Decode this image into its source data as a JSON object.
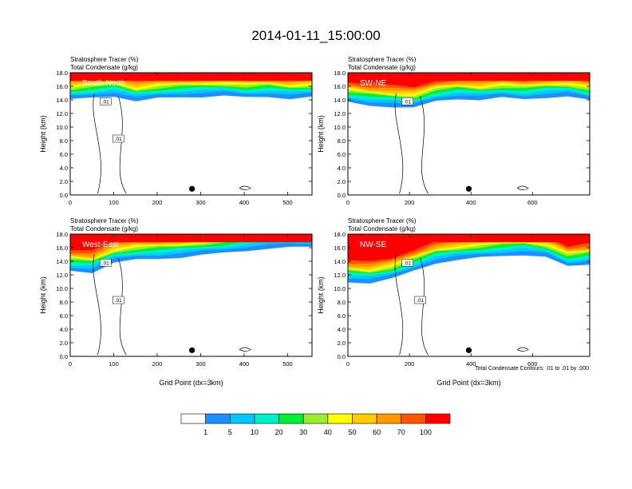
{
  "title": "2014-01-11_15:00:00",
  "colors": {
    "levels": [
      "#ffffff",
      "#1f8fff",
      "#00c8ff",
      "#00eecc",
      "#00ee33",
      "#99ee33",
      "#ffff00",
      "#ffcc00",
      "#ff9900",
      "#ff5500",
      "#ff0000"
    ],
    "contour": "#000000",
    "frame": "#000000"
  },
  "colorbar": {
    "labels": [
      "1",
      "5",
      "10",
      "20",
      "30",
      "40",
      "50",
      "60",
      "70",
      "100"
    ]
  },
  "footnote": "Total Condensate Contours: .01 to .01 by .000",
  "chart_data": [
    {
      "type": "heatmap",
      "name": "South-North",
      "title_line1": "Stratosphere Tracer   (%)",
      "title_line2": "Total Condensate   (g/kg)",
      "panel_label": "South-North",
      "ylabel": "Height (km)",
      "xlabel": "",
      "xlim": [
        0,
        556
      ],
      "ylim": [
        0,
        18
      ],
      "xticks": [
        "0",
        "100",
        "200",
        "300",
        "400",
        "500"
      ],
      "xtick_values": [
        0,
        100,
        200,
        300,
        400,
        500
      ],
      "yticks": [
        "0.0",
        "2.0",
        "4.0",
        "6.0",
        "8.0",
        "10.0",
        "12.0",
        "14.0",
        "16.0",
        "18.0"
      ],
      "contour_labels": [
        ".01",
        ".01"
      ],
      "marker_x": 280,
      "tracer_base_km": [
        14.0,
        14.3,
        14.6,
        13.8,
        14.2,
        14.4,
        14.5,
        14.6,
        14.3,
        14.5,
        14.2,
        14.4
      ]
    },
    {
      "type": "heatmap",
      "name": "SW-NE",
      "title_line1": "Stratosphere Tracer   (%)",
      "title_line2": "Total Condensate   (g/kg)",
      "panel_label": "SW-NE",
      "ylabel": "Height (km)",
      "xlabel": "",
      "xlim": [
        0,
        786
      ],
      "ylim": [
        0,
        18
      ],
      "xticks": [
        "0",
        "200",
        "400",
        "600"
      ],
      "xtick_values": [
        0,
        200,
        400,
        600
      ],
      "yticks": [
        "0.0",
        "2.0",
        "4.0",
        "6.0",
        "8.0",
        "10.0",
        "12.0",
        "14.0",
        "16.0",
        "18.0"
      ],
      "contour_labels": [
        ".01"
      ],
      "marker_x": 393,
      "tracer_base_km": [
        13.6,
        13.2,
        13.0,
        12.8,
        13.8,
        14.2,
        14.0,
        14.3,
        14.1,
        14.4,
        14.5,
        13.9
      ]
    },
    {
      "type": "heatmap",
      "name": "West-East",
      "title_line1": "Stratosphere Tracer   (%)",
      "title_line2": "Total Condensate   (g/kg)",
      "panel_label": "West-East",
      "ylabel": "Height (km)",
      "xlabel": "Grid Point (dx=3km)",
      "xlim": [
        0,
        556
      ],
      "ylim": [
        0,
        18
      ],
      "xticks": [
        "0",
        "100",
        "200",
        "300",
        "400",
        "500"
      ],
      "xtick_values": [
        0,
        100,
        200,
        300,
        400,
        500
      ],
      "yticks": [
        "0.0",
        "2.0",
        "4.0",
        "6.0",
        "8.0",
        "10.0",
        "12.0",
        "14.0",
        "16.0",
        "18.0"
      ],
      "contour_labels": [
        ".01",
        ".01"
      ],
      "marker_x": 280,
      "tracer_base_km": [
        12.6,
        12.4,
        13.8,
        14.2,
        14.4,
        14.6,
        14.9,
        15.2,
        15.6,
        15.9,
        16.0,
        16.1
      ]
    },
    {
      "type": "heatmap",
      "name": "NW-SE",
      "title_line1": "Stratosphere Tracer   (%)",
      "title_line2": "Total Condensate   (g/kg)",
      "panel_label": "NW-SE",
      "ylabel": "Height (km)",
      "xlabel": "Grid Point (dx=3km)",
      "xlim": [
        0,
        786
      ],
      "ylim": [
        0,
        18
      ],
      "xticks": [
        "0",
        "200",
        "400",
        "600"
      ],
      "xtick_values": [
        0,
        200,
        400,
        600
      ],
      "yticks": [
        "0.0",
        "2.0",
        "4.0",
        "6.0",
        "8.0",
        "10.0",
        "12.0",
        "14.0",
        "16.0",
        "18.0"
      ],
      "contour_labels": [
        ".01",
        ".01"
      ],
      "marker_x": 393,
      "tracer_base_km": [
        11.0,
        10.8,
        11.4,
        12.6,
        13.8,
        14.2,
        14.5,
        14.8,
        15.0,
        14.6,
        13.2,
        13.6
      ]
    }
  ]
}
